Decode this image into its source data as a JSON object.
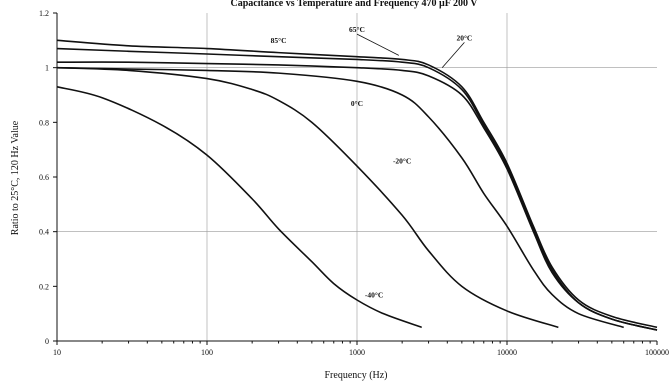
{
  "chart_data": {
    "type": "line",
    "title": "Capacitance vs Temperature and Frequency 470 µF 200 V",
    "xlabel": "Frequency (Hz)",
    "ylabel": "Ratio to 25°C, 120 Hz Value",
    "x_scale": "log",
    "xlim": [
      10,
      100000
    ],
    "ylim": [
      0,
      1.2
    ],
    "x_ticks": [
      {
        "value": 10,
        "label": "10"
      },
      {
        "value": 100,
        "label": "100"
      },
      {
        "value": 1000,
        "label": "1000"
      },
      {
        "value": 10000,
        "label": "10000"
      },
      {
        "value": 100000,
        "label": "100000"
      }
    ],
    "y_ticks": [
      {
        "value": 0,
        "label": "0"
      },
      {
        "value": 0.2,
        "label": "0.2"
      },
      {
        "value": 0.4,
        "label": "0.4"
      },
      {
        "value": 0.6,
        "label": "0.6"
      },
      {
        "value": 0.8,
        "label": "0.8"
      },
      {
        "value": 1,
        "label": "1"
      },
      {
        "value": 1.2,
        "label": "1.2"
      }
    ],
    "grid": true,
    "series": [
      {
        "name": "85°C",
        "label_at": [
          300,
          1.09
        ],
        "leader": false,
        "points": [
          [
            10,
            1.1
          ],
          [
            30,
            1.08
          ],
          [
            100,
            1.07
          ],
          [
            300,
            1.055
          ],
          [
            1000,
            1.04
          ],
          [
            2000,
            1.03
          ],
          [
            3000,
            1.01
          ],
          [
            5000,
            0.93
          ],
          [
            7000,
            0.8
          ],
          [
            10000,
            0.65
          ],
          [
            15000,
            0.42
          ],
          [
            20000,
            0.27
          ],
          [
            30000,
            0.15
          ],
          [
            50000,
            0.09
          ],
          [
            100000,
            0.05
          ]
        ]
      },
      {
        "name": "65°C",
        "label_at": [
          1000,
          1.13
        ],
        "leader": true,
        "leader_to": [
          1900,
          1.045
        ],
        "points": [
          [
            10,
            1.07
          ],
          [
            30,
            1.06
          ],
          [
            100,
            1.05
          ],
          [
            300,
            1.04
          ],
          [
            1000,
            1.03
          ],
          [
            2000,
            1.02
          ],
          [
            3000,
            1.0
          ],
          [
            5000,
            0.92
          ],
          [
            7000,
            0.79
          ],
          [
            10000,
            0.64
          ],
          [
            15000,
            0.41
          ],
          [
            20000,
            0.26
          ],
          [
            30000,
            0.14
          ],
          [
            50000,
            0.08
          ],
          [
            100000,
            0.04
          ]
        ]
      },
      {
        "name": "20°C",
        "label_at": [
          5200,
          1.1
        ],
        "leader": true,
        "leader_to": [
          3700,
          1.0
        ],
        "points": [
          [
            10,
            1.02
          ],
          [
            30,
            1.02
          ],
          [
            100,
            1.015
          ],
          [
            300,
            1.01
          ],
          [
            1000,
            1.0
          ],
          [
            2000,
            0.99
          ],
          [
            3000,
            0.97
          ],
          [
            5000,
            0.9
          ],
          [
            7000,
            0.78
          ],
          [
            10000,
            0.63
          ],
          [
            15000,
            0.4
          ],
          [
            20000,
            0.25
          ],
          [
            30000,
            0.14
          ],
          [
            50000,
            0.08
          ],
          [
            100000,
            0.04
          ]
        ]
      },
      {
        "name": "0°C",
        "label_at": [
          1000,
          0.86
        ],
        "leader": false,
        "points": [
          [
            10,
            1.0
          ],
          [
            30,
            0.995
          ],
          [
            100,
            0.99
          ],
          [
            300,
            0.98
          ],
          [
            1000,
            0.95
          ],
          [
            2000,
            0.9
          ],
          [
            3000,
            0.82
          ],
          [
            5000,
            0.67
          ],
          [
            7000,
            0.54
          ],
          [
            10000,
            0.42
          ],
          [
            15000,
            0.26
          ],
          [
            20000,
            0.17
          ],
          [
            30000,
            0.1
          ],
          [
            60000,
            0.05
          ]
        ]
      },
      {
        "name": "-20°C",
        "label_at": [
          2000,
          0.65
        ],
        "leader": false,
        "points": [
          [
            10,
            1.0
          ],
          [
            30,
            0.99
          ],
          [
            100,
            0.96
          ],
          [
            200,
            0.92
          ],
          [
            300,
            0.88
          ],
          [
            500,
            0.8
          ],
          [
            1000,
            0.64
          ],
          [
            2000,
            0.46
          ],
          [
            3000,
            0.33
          ],
          [
            5000,
            0.2
          ],
          [
            10000,
            0.11
          ],
          [
            22000,
            0.05
          ]
        ]
      },
      {
        "name": "-40°C",
        "label_at": [
          1300,
          0.16
        ],
        "leader": false,
        "points": [
          [
            10,
            0.93
          ],
          [
            20,
            0.89
          ],
          [
            50,
            0.79
          ],
          [
            100,
            0.68
          ],
          [
            200,
            0.52
          ],
          [
            300,
            0.41
          ],
          [
            500,
            0.29
          ],
          [
            700,
            0.21
          ],
          [
            1000,
            0.15
          ],
          [
            1500,
            0.1
          ],
          [
            2700,
            0.05
          ]
        ]
      }
    ]
  }
}
